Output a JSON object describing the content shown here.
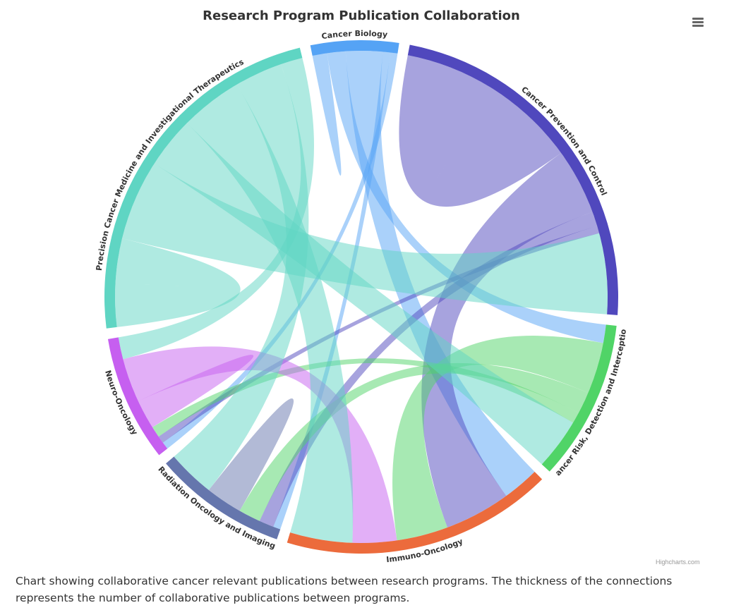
{
  "chart_data": {
    "type": "dependencywheel",
    "title": "Research Program Publication Collaboration",
    "credits": "Highcharts.com",
    "caption": "Chart showing collaborative cancer relevant publications between research programs. The thickness of the connections represents the number of collaborative publications between programs.",
    "nodes": [
      {
        "name": "Cancer Biology",
        "color": "#55a3f5"
      },
      {
        "name": "Cancer Prevention and Control",
        "color": "#5048bd"
      },
      {
        "name": "Cancer Risk, Detection and Interception",
        "color": "#50d467"
      },
      {
        "name": "Immuno-Oncology",
        "color": "#ec6b3c"
      },
      {
        "name": "Radiation Oncology and Imaging",
        "color": "#6576ad"
      },
      {
        "name": "Neuro-Oncology",
        "color": "#c65ff0"
      },
      {
        "name": "Precision Cancer Medicine and Investigational Therapeutics",
        "color": "#5fd5c3"
      }
    ],
    "links": [
      {
        "from": "Cancer Biology",
        "to": "Cancer Biology",
        "weight": 2
      },
      {
        "from": "Cancer Biology",
        "to": "Cancer Risk, Detection and Interception",
        "weight": 5
      },
      {
        "from": "Cancer Biology",
        "to": "Immuno-Oncology",
        "weight": 10
      },
      {
        "from": "Cancer Biology",
        "to": "Radiation Oncology and Imaging",
        "weight": 2
      },
      {
        "from": "Cancer Biology",
        "to": "Neuro-Oncology",
        "weight": 2
      },
      {
        "from": "Cancer Prevention and Control",
        "to": "Cancer Prevention and Control",
        "weight": 25
      },
      {
        "from": "Cancer Prevention and Control",
        "to": "Immuno-Oncology",
        "weight": 18
      },
      {
        "from": "Cancer Prevention and Control",
        "to": "Radiation Oncology and Imaging",
        "weight": 4
      },
      {
        "from": "Cancer Prevention and Control",
        "to": "Neuro-Oncology",
        "weight": 2
      },
      {
        "from": "Cancer Risk, Detection and Interception",
        "to": "Immuno-Oncology",
        "weight": 14
      },
      {
        "from": "Cancer Risk, Detection and Interception",
        "to": "Radiation Oncology and Imaging",
        "weight": 6
      },
      {
        "from": "Cancer Risk, Detection and Interception",
        "to": "Neuro-Oncology",
        "weight": 3
      },
      {
        "from": "Radiation Oncology and Imaging",
        "to": "Radiation Oncology and Imaging",
        "weight": 5
      },
      {
        "from": "Neuro-Oncology",
        "to": "Neuro-Oncology",
        "weight": 4
      },
      {
        "from": "Neuro-Oncology",
        "to": "Immuno-Oncology",
        "weight": 12
      },
      {
        "from": "Precision Cancer Medicine and Investigational Therapeutics",
        "to": "Precision Cancer Medicine and Investigational Therapeutics",
        "weight": 12
      },
      {
        "from": "Precision Cancer Medicine and Investigational Therapeutics",
        "to": "Cancer Prevention and Control",
        "weight": 22
      },
      {
        "from": "Precision Cancer Medicine and Investigational Therapeutics",
        "to": "Cancer Risk, Detection and Interception",
        "weight": 14
      },
      {
        "from": "Precision Cancer Medicine and Investigational Therapeutics",
        "to": "Immuno-Oncology",
        "weight": 17
      },
      {
        "from": "Precision Cancer Medicine and Investigational Therapeutics",
        "to": "Radiation Oncology and Imaging",
        "weight": 13
      },
      {
        "from": "Precision Cancer Medicine and Investigational Therapeutics",
        "to": "Neuro-Oncology",
        "weight": 6
      }
    ]
  },
  "ui": {
    "menu_icon": "hamburger-menu-icon"
  }
}
